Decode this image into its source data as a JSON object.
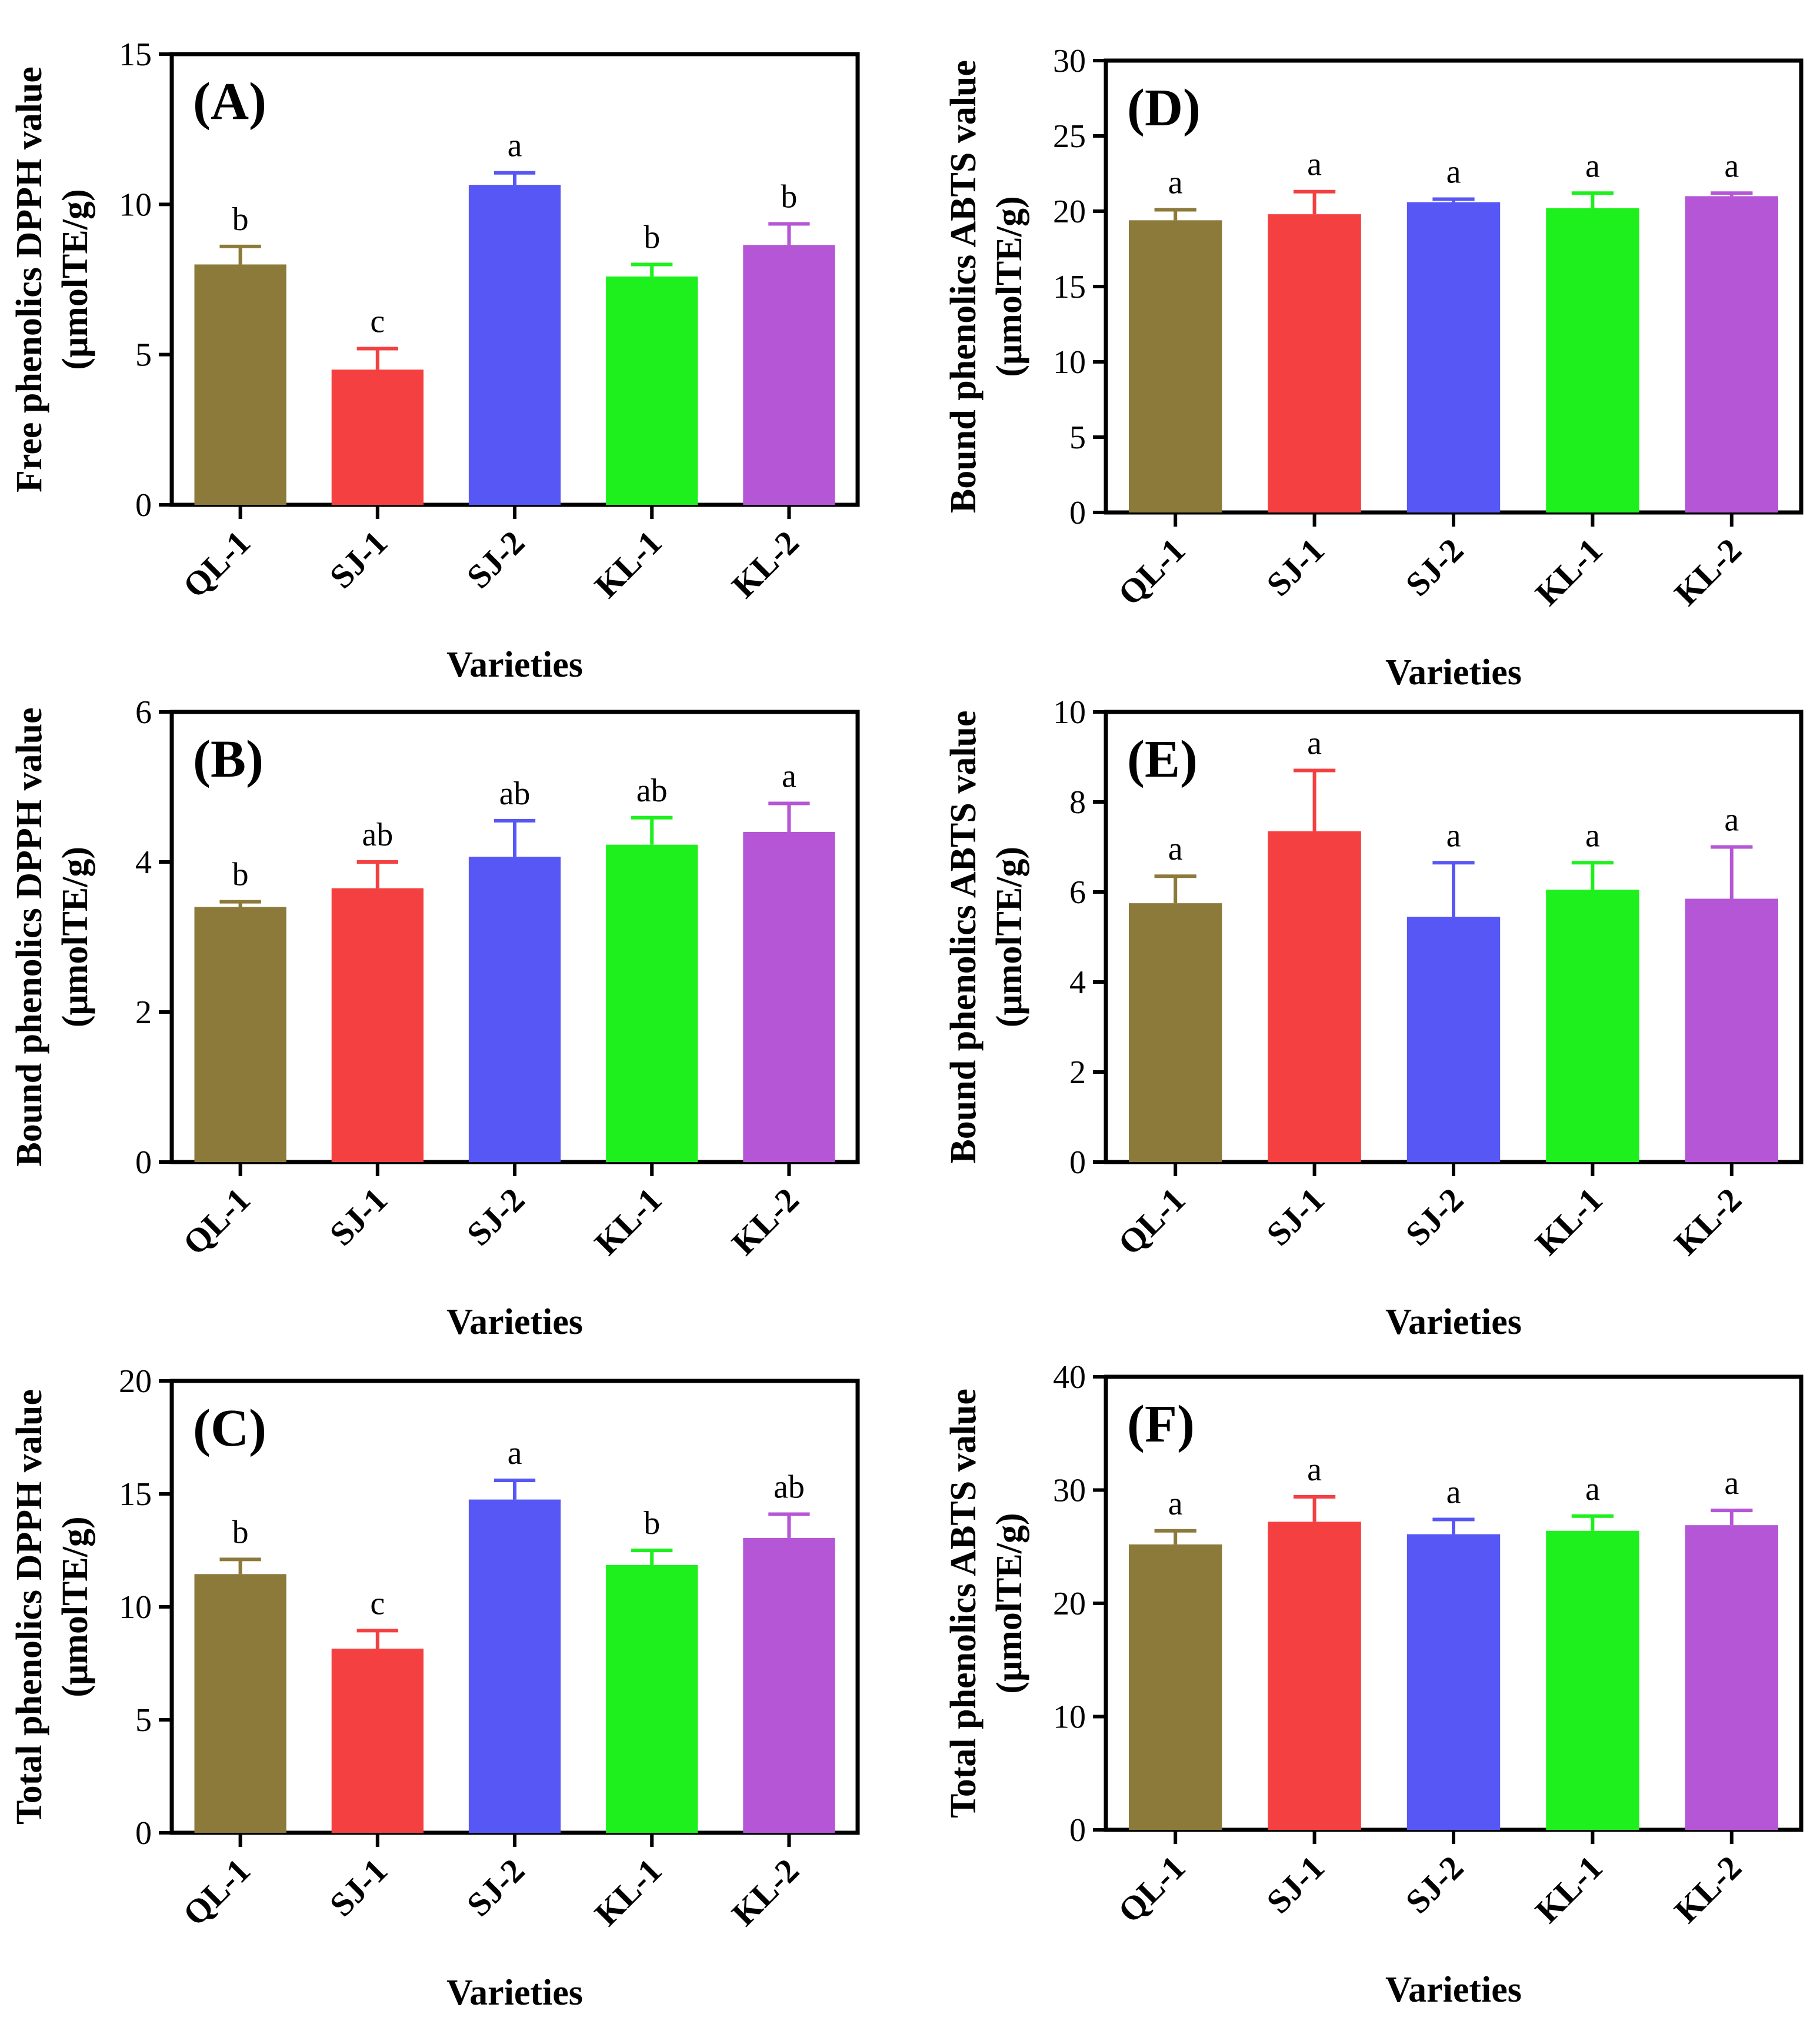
{
  "figure": {
    "xlabel": "Varieties",
    "categories": [
      "QL-1",
      "SJ-1",
      "SJ-2",
      "KL-1",
      "KL-2"
    ],
    "colors": [
      "#8B7A3A",
      "#F44040",
      "#5757F5",
      "#1EF01E",
      "#B556D6"
    ]
  },
  "chart_data": [
    {
      "id": "A",
      "type": "bar",
      "panel_label": "(A)",
      "ylabel_line1": "Free phenolics DPPH value",
      "ylabel_line2": "(μmolTE/g)",
      "xlabel": "Varieties",
      "categories": [
        "QL-1",
        "SJ-1",
        "SJ-2",
        "KL-1",
        "KL-2"
      ],
      "values": [
        8.0,
        4.5,
        10.65,
        7.6,
        8.65
      ],
      "errors": [
        0.6,
        0.7,
        0.4,
        0.4,
        0.7
      ],
      "significance": [
        "b",
        "c",
        "a",
        "b",
        "b"
      ],
      "ylim": [
        0,
        15
      ],
      "yticks": [
        0,
        5,
        10,
        15
      ]
    },
    {
      "id": "B",
      "type": "bar",
      "panel_label": "(B)",
      "ylabel_line1": "Bound phenolics DPPH value",
      "ylabel_line2": "(μmolTE/g)",
      "xlabel": "Varieties",
      "categories": [
        "QL-1",
        "SJ-1",
        "SJ-2",
        "KL-1",
        "KL-2"
      ],
      "values": [
        3.4,
        3.65,
        4.07,
        4.23,
        4.4
      ],
      "errors": [
        0.07,
        0.35,
        0.48,
        0.36,
        0.38
      ],
      "significance": [
        "b",
        "ab",
        "ab",
        "ab",
        "a"
      ],
      "ylim": [
        0,
        6
      ],
      "yticks": [
        0,
        2,
        4,
        6
      ]
    },
    {
      "id": "C",
      "type": "bar",
      "panel_label": "(C)",
      "ylabel_line1": "Total phenolics DPPH value",
      "ylabel_line2": "(μmolTE/g)",
      "xlabel": "Varieties",
      "categories": [
        "QL-1",
        "SJ-1",
        "SJ-2",
        "KL-1",
        "KL-2"
      ],
      "values": [
        11.45,
        8.15,
        14.75,
        11.85,
        13.05
      ],
      "errors": [
        0.65,
        0.8,
        0.85,
        0.65,
        1.05
      ],
      "significance": [
        "b",
        "c",
        "a",
        "b",
        "ab"
      ],
      "ylim": [
        0,
        20
      ],
      "yticks": [
        0,
        5,
        10,
        15,
        20
      ]
    },
    {
      "id": "D",
      "type": "bar",
      "panel_label": "(D)",
      "ylabel_line1": "Bound phenolics ABTS value",
      "ylabel_line2": "(μmolTE/g)",
      "xlabel": "Varieties",
      "categories": [
        "QL-1",
        "SJ-1",
        "SJ-2",
        "KL-1",
        "KL-2"
      ],
      "values": [
        19.4,
        19.8,
        20.6,
        20.2,
        21.0
      ],
      "errors": [
        0.7,
        1.5,
        0.2,
        1.0,
        0.2
      ],
      "significance": [
        "a",
        "a",
        "a",
        "a",
        "a"
      ],
      "ylim": [
        0,
        30
      ],
      "yticks": [
        0,
        5,
        10,
        15,
        20,
        25,
        30
      ]
    },
    {
      "id": "E",
      "type": "bar",
      "panel_label": "(E)",
      "ylabel_line1": "Bound phenolics ABTS value",
      "ylabel_line2": "(μmolTE/g)",
      "xlabel": "Varieties",
      "categories": [
        "QL-1",
        "SJ-1",
        "SJ-2",
        "KL-1",
        "KL-2"
      ],
      "values": [
        5.75,
        7.35,
        5.45,
        6.05,
        5.85
      ],
      "errors": [
        0.6,
        1.35,
        1.2,
        0.6,
        1.15
      ],
      "significance": [
        "a",
        "a",
        "a",
        "a",
        "a"
      ],
      "ylim": [
        0,
        10
      ],
      "yticks": [
        0,
        2,
        4,
        6,
        8,
        10
      ]
    },
    {
      "id": "F",
      "type": "bar",
      "panel_label": "(F)",
      "ylabel_line1": "Total phenolics ABTS value",
      "ylabel_line2": "(μmolTE/g)",
      "xlabel": "Varieties",
      "categories": [
        "QL-1",
        "SJ-1",
        "SJ-2",
        "KL-1",
        "KL-2"
      ],
      "values": [
        25.2,
        27.2,
        26.1,
        26.4,
        26.9
      ],
      "errors": [
        1.2,
        2.2,
        1.3,
        1.3,
        1.3
      ],
      "significance": [
        "a",
        "a",
        "a",
        "a",
        "a"
      ],
      "ylim": [
        0,
        40
      ],
      "yticks": [
        0,
        10,
        20,
        30,
        40
      ]
    }
  ]
}
